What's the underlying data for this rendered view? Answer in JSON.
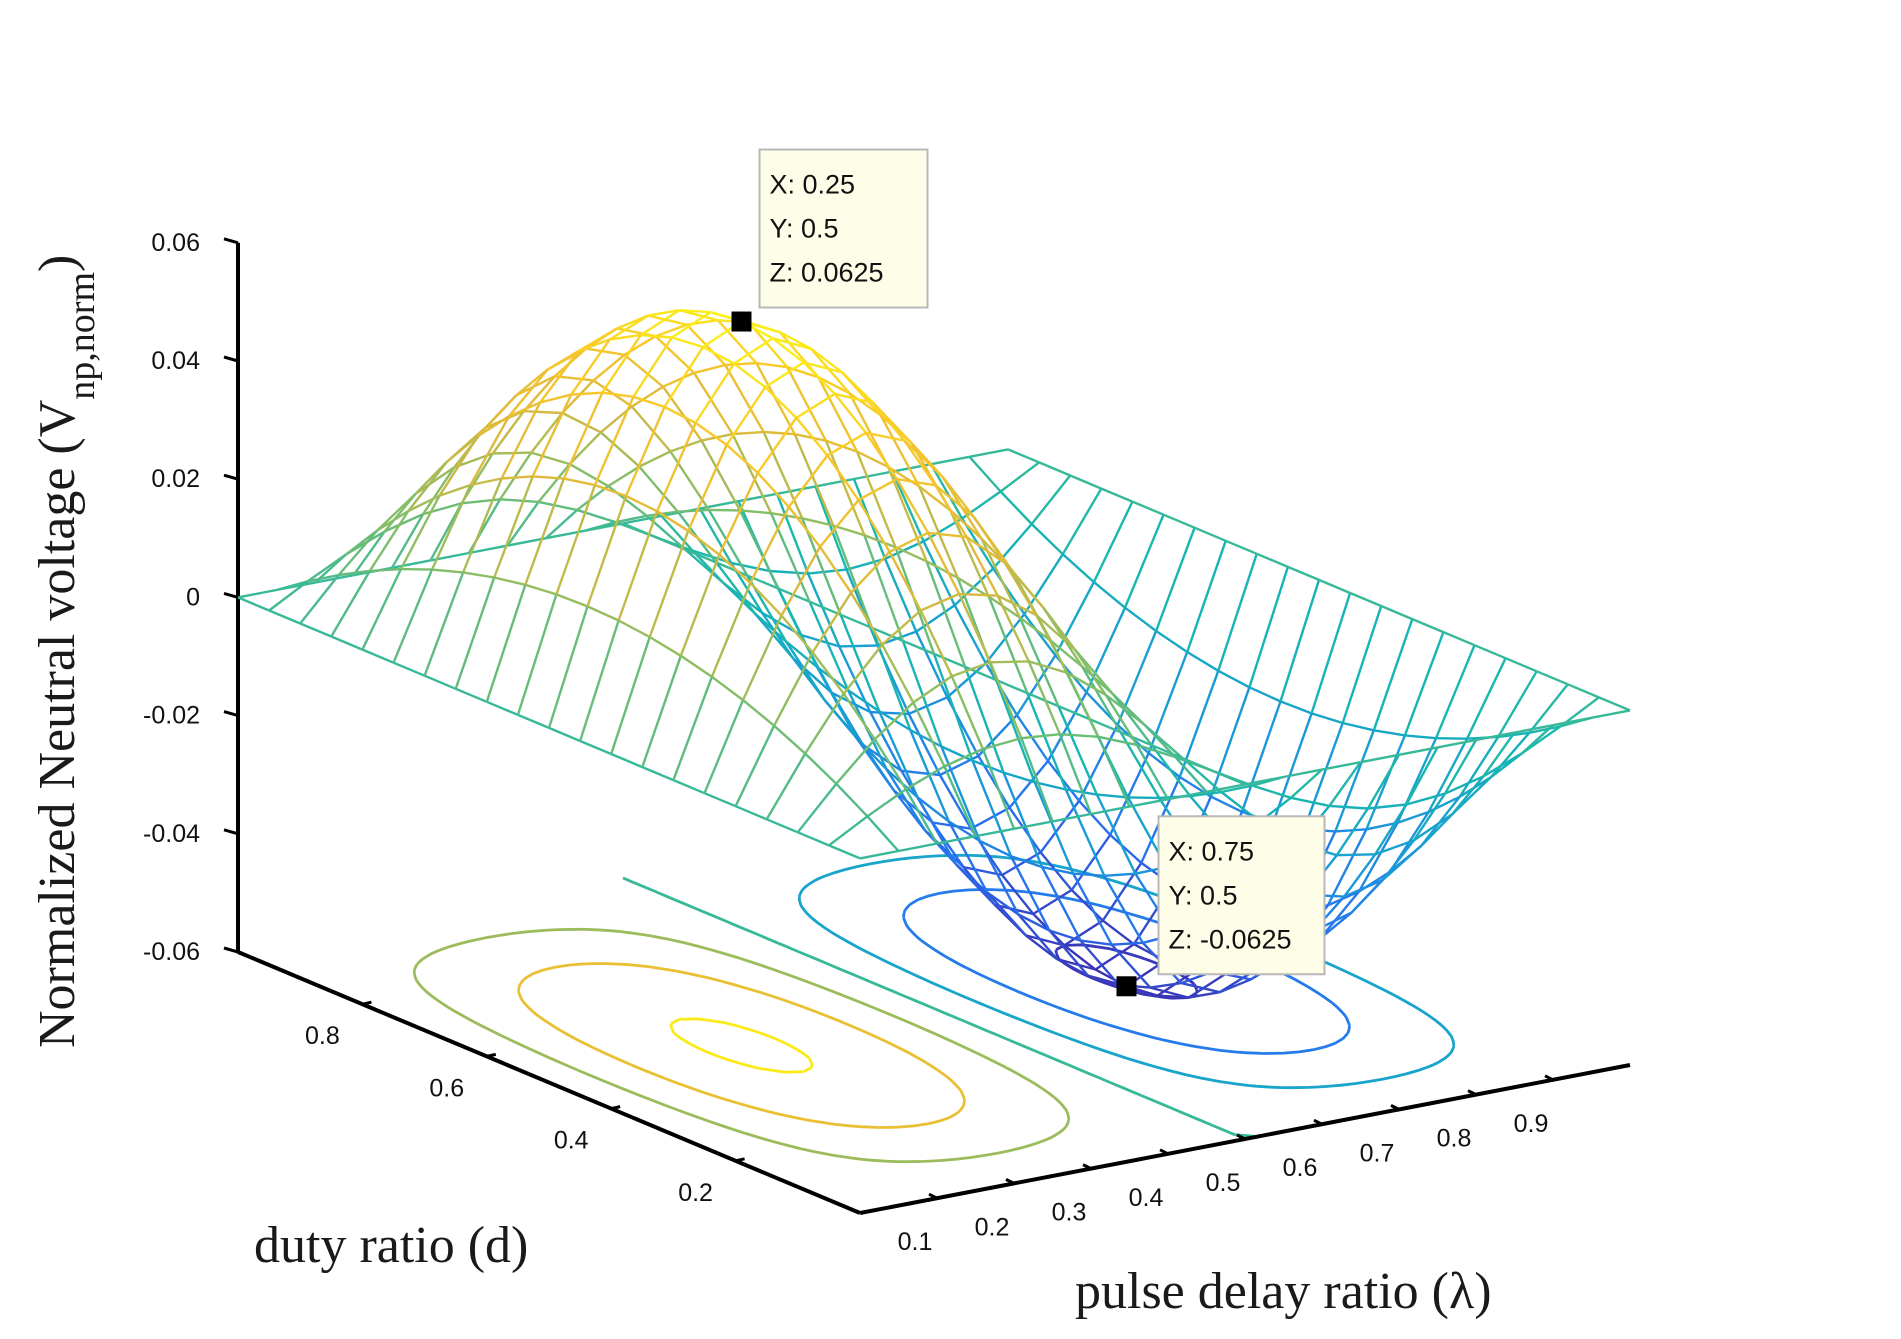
{
  "chart_data": {
    "type": "surface-3d",
    "title": "",
    "xlabel": "pulse delay ratio (λ)",
    "ylabel": "duty ratio (d)",
    "zlabel_main": "Normalized Neutral voltage (V",
    "zlabel_sub": "np,norm",
    "zlabel_close": ")",
    "xlim": [
      0,
      1
    ],
    "ylim": [
      0,
      1
    ],
    "zlim": [
      -0.06,
      0.06
    ],
    "x_ticks": [
      "0.1",
      "0.2",
      "0.3",
      "0.4",
      "0.5",
      "0.6",
      "0.7",
      "0.8",
      "0.9"
    ],
    "y_ticks": [
      "0.2",
      "0.4",
      "0.6",
      "0.8"
    ],
    "z_ticks": [
      "-0.06",
      "-0.04",
      "-0.02",
      "0",
      "0.02",
      "0.04",
      "0.06"
    ],
    "function": "z = d*(1-d)*sin(2*pi*lambda)/4",
    "grid_points_x": 21,
    "grid_points_y": 21,
    "contour_levels": [
      -0.06,
      -0.04,
      -0.02,
      0,
      0.02,
      0.04,
      0.06
    ],
    "colormap": "parula",
    "datatips": [
      {
        "x_label": "X: 0.25",
        "y_label": "Y: 0.5",
        "z_label": "Z: 0.0625",
        "x": 0.25,
        "y": 0.5,
        "z": 0.0625
      },
      {
        "x_label": "X: 0.75",
        "y_label": "Y: 0.5",
        "z_label": "Z: -0.0625",
        "x": 0.75,
        "y": 0.5,
        "z": -0.0625
      }
    ]
  }
}
